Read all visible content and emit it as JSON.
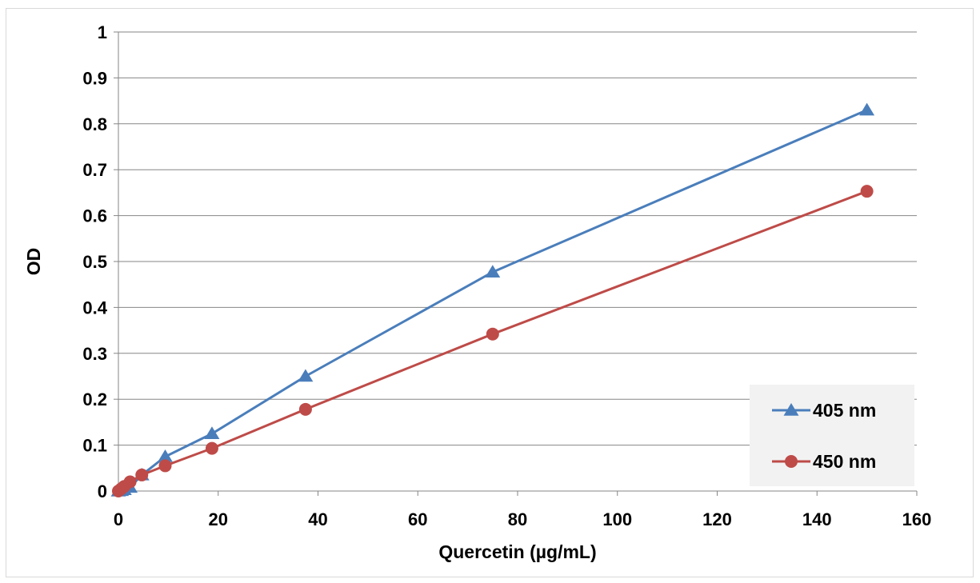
{
  "chart_data": {
    "type": "line",
    "title": "",
    "xlabel": "Quercetin (µg/mL)",
    "ylabel": "OD",
    "xlim": [
      0,
      160
    ],
    "ylim": [
      0,
      1
    ],
    "xticks": [
      "0",
      "20",
      "40",
      "60",
      "80",
      "100",
      "120",
      "140",
      "160"
    ],
    "yticks": [
      "0",
      "0.1",
      "0.2",
      "0.3",
      "0.4",
      "0.5",
      "0.6",
      "0.7",
      "0.8",
      "0.9",
      "1"
    ],
    "grid": "horizontal",
    "legend_position": "bottom-right",
    "series": [
      {
        "name": "405 nm",
        "color": "#4a7ebb",
        "marker": "triangle",
        "x": [
          0,
          0.586,
          1.17,
          2.34,
          4.69,
          9.38,
          18.75,
          37.5,
          75,
          150
        ],
        "y": [
          0.0,
          0.001,
          0.003,
          0.008,
          0.035,
          0.075,
          0.125,
          0.25,
          0.477,
          0.83
        ]
      },
      {
        "name": "450 nm",
        "color": "#be4b48",
        "marker": "circle",
        "x": [
          0,
          0.586,
          1.17,
          2.34,
          4.69,
          9.38,
          18.75,
          37.5,
          75,
          150
        ],
        "y": [
          0.0,
          0.005,
          0.01,
          0.02,
          0.035,
          0.055,
          0.093,
          0.178,
          0.342,
          0.653
        ]
      }
    ]
  }
}
